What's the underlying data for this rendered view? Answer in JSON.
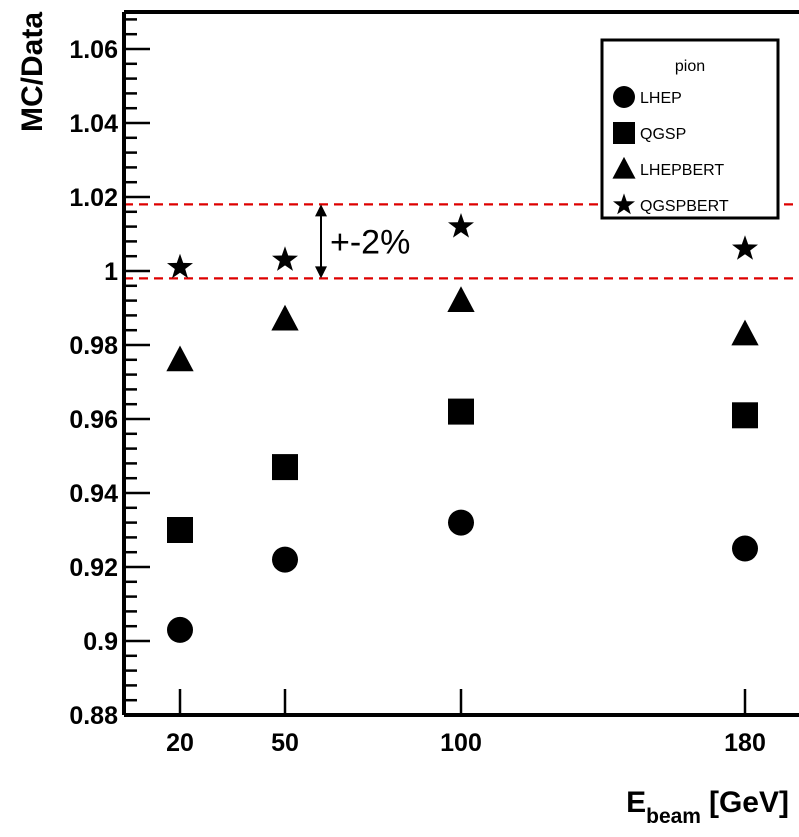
{
  "chart_data": {
    "type": "scatter",
    "xlabel": "E",
    "xlabel_subscript": "beam",
    "xlabel_unit": "[GeV]",
    "ylabel": "MC/Data",
    "ylim": [
      0.88,
      1.07
    ],
    "yticks": [
      "0.88",
      "0.9",
      "0.92",
      "0.94",
      "0.96",
      "0.98",
      "1",
      "1.02",
      "1.04",
      "1.06"
    ],
    "ytick_values": [
      0.88,
      0.9,
      0.92,
      0.94,
      0.96,
      0.98,
      1.0,
      1.02,
      1.04,
      1.06
    ],
    "x": [
      20,
      50,
      100,
      180
    ],
    "xtick_labels": [
      "20",
      "50",
      "100",
      "180"
    ],
    "legend": {
      "title": "pion",
      "placement": "top-right"
    },
    "series": [
      {
        "name": "LHEP",
        "marker": "circle",
        "values": [
          0.903,
          0.922,
          0.932,
          0.925
        ]
      },
      {
        "name": "QGSP",
        "marker": "square",
        "values": [
          0.93,
          0.947,
          0.962,
          0.961
        ]
      },
      {
        "name": "LHEPBERT",
        "marker": "triangle",
        "values": [
          0.976,
          0.987,
          0.992,
          0.983
        ]
      },
      {
        "name": "QGSPBERT",
        "marker": "star",
        "values": [
          1.001,
          1.003,
          1.012,
          1.006
        ]
      }
    ],
    "reference_lines": [
      {
        "y": 1.018,
        "color": "#dd0000",
        "style": "dashed"
      },
      {
        "y": 0.998,
        "color": "#dd0000",
        "style": "dashed"
      }
    ],
    "annotation": {
      "text": "+-2%",
      "x": 58,
      "y_from": 0.998,
      "y_to": 1.018
    },
    "grid": false
  }
}
